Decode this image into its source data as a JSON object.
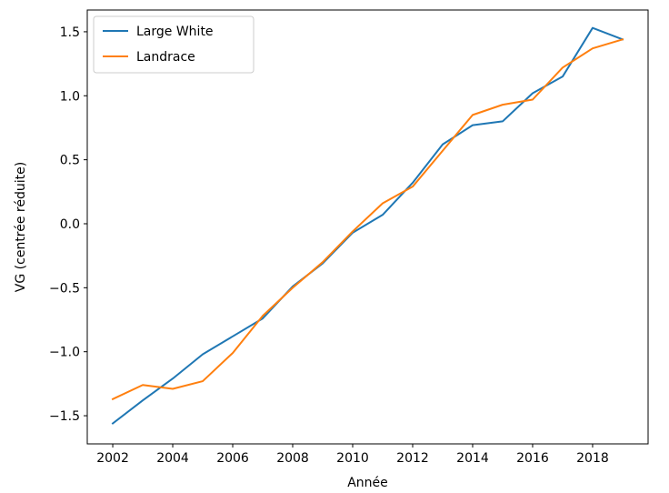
{
  "chart_data": {
    "type": "line",
    "title": "",
    "xlabel": "Année",
    "ylabel": "VG (centrée réduite)",
    "x": [
      2002,
      2003,
      2004,
      2005,
      2006,
      2007,
      2008,
      2009,
      2010,
      2011,
      2012,
      2013,
      2014,
      2015,
      2016,
      2017,
      2018,
      2019
    ],
    "xlim": [
      2001.15,
      2019.85
    ],
    "ylim": [
      -1.72,
      1.67
    ],
    "xticks": [
      2002,
      2004,
      2006,
      2008,
      2010,
      2012,
      2014,
      2016,
      2018
    ],
    "xtick_labels": [
      "2002",
      "2004",
      "2006",
      "2008",
      "2010",
      "2012",
      "2014",
      "2016",
      "2018"
    ],
    "yticks": [
      -1.5,
      -1.0,
      -0.5,
      0.0,
      0.5,
      1.0,
      1.5
    ],
    "ytick_labels": [
      "−1.5",
      "−1.0",
      "−0.5",
      "0.0",
      "0.5",
      "1.0",
      "1.5"
    ],
    "grid": false,
    "legend_position": "top-left",
    "series": [
      {
        "name": "Large White",
        "color": "#1f77b4",
        "values": [
          -1.56,
          -1.38,
          -1.21,
          -1.02,
          -0.88,
          -0.74,
          -0.49,
          -0.31,
          -0.07,
          0.07,
          0.32,
          0.62,
          0.77,
          0.8,
          1.02,
          1.15,
          1.53,
          1.44
        ]
      },
      {
        "name": "Landrace",
        "color": "#ff7f0e",
        "values": [
          -1.37,
          -1.26,
          -1.29,
          -1.23,
          -1.01,
          -0.72,
          -0.5,
          -0.3,
          -0.06,
          0.16,
          0.29,
          0.57,
          0.85,
          0.93,
          0.97,
          1.22,
          1.37,
          1.44
        ]
      }
    ]
  }
}
